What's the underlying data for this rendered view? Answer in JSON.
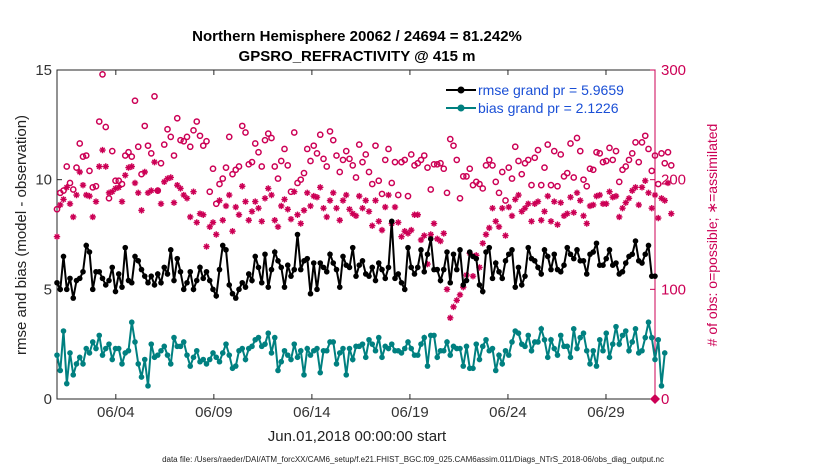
{
  "chart_data": {
    "type": "line",
    "title_line1": "Northern Hemisphere 20062 / 24694 = 81.242%",
    "title_line2": "GPSRO_REFRACTIVITY @ 415 m",
    "xlabel": "Jun.01,2018 00:00:00 start",
    "ylabel": "rmse and bias (model - observation)",
    "y2label": "# of obs: o=possible; ∗=assimilated",
    "footnote": "data file: /Users/raeder/DAI/ATM_forcXX/CAM6_setup/f.e21.FHIST_BGC.f09_025.CAM6assim.011/Diags_NTrS_2018-06/obs_diag_output.nc",
    "x_range": [
      1,
      31.5
    ],
    "ylim": [
      0,
      15
    ],
    "y2lim": [
      0,
      300
    ],
    "x_ticks": [
      4,
      9,
      14,
      19,
      24,
      29
    ],
    "x_tick_labels": [
      "06/04",
      "06/09",
      "06/14",
      "06/19",
      "06/24",
      "06/29"
    ],
    "y_ticks": [
      0,
      5,
      10,
      15
    ],
    "y_tick_labels": [
      "0",
      "5",
      "10",
      "15"
    ],
    "y2_ticks": [
      0,
      100,
      200,
      300
    ],
    "y2_tick_labels": [
      "0",
      "100",
      "200",
      "300"
    ],
    "colors": {
      "rmse": "#000000",
      "bias": "#008080",
      "obs": "#cc0055",
      "legend_text": "#1a4fd6"
    },
    "series": [
      {
        "name": "rmse grand pr = 5.9659",
        "axis": "left",
        "values": [
          5.3,
          5.0,
          6.5,
          5.0,
          5.5,
          4.6,
          5.4,
          5.5,
          5.8,
          7.0,
          6.7,
          5.0,
          5.8,
          5.8,
          5.5,
          5.2,
          5.4,
          6.0,
          4.9,
          5.7,
          5.1,
          6.9,
          5.4,
          5.3,
          6.5,
          6.3,
          5.9,
          5.6,
          5.3,
          5.6,
          5.2,
          5.7,
          5.3,
          6.0,
          5.7,
          6.8,
          5.4,
          6.4,
          5.8,
          5.0,
          5.3,
          5.8,
          5.0,
          5.4,
          6.0,
          5.5,
          5.8,
          5.4,
          5.0,
          4.7,
          5.9,
          7.0,
          6.8,
          5.2,
          4.8,
          4.6,
          5.0,
          5.3,
          5.1,
          5.7,
          5.4,
          6.5,
          6.0,
          5.3,
          6.6,
          5.1,
          5.9,
          6.7,
          6.3,
          6.0,
          5.1,
          6.1,
          5.6,
          5.9,
          7.5,
          5.9,
          6.3,
          6.4,
          4.8,
          6.2,
          5.0,
          6.2,
          6.0,
          5.8,
          6.6,
          6.2,
          5.9,
          5.1,
          6.5,
          6.1,
          6.0,
          6.9,
          5.6,
          6.1,
          6.3,
          5.7,
          5.6,
          6.0,
          5.4,
          6.2,
          5.9,
          5.5,
          6.0,
          8.1,
          5.5,
          5.7,
          5.3,
          5.0,
          6.9,
          6.0,
          5.7,
          6.0,
          6.8,
          5.8,
          6.6,
          7.3,
          5.9,
          5.9,
          5.4,
          5.9,
          6.7,
          5.3,
          6.6,
          5.9,
          6.8,
          5.2,
          5.4,
          6.7,
          6.5,
          6.4,
          5.2,
          4.9,
          6.7,
          6.9,
          5.5,
          6.2,
          5.8,
          5.5,
          6.3,
          6.6,
          6.8,
          5.1,
          6.0,
          5.2,
          5.6,
          6.9,
          6.4,
          6.3,
          6.0,
          5.7,
          6.8,
          6.5,
          5.9,
          6.6,
          5.9,
          5.8,
          6.1,
          6.9,
          6.6,
          6.4,
          6.8,
          6.3,
          6.3,
          5.7,
          6.6,
          6.7,
          7.1,
          6.1,
          6.1,
          6.4,
          6.8,
          6.1,
          6.2,
          5.7,
          5.8,
          6.2,
          6.5,
          6.6,
          7.2,
          6.3,
          6.2,
          6.6,
          7.0,
          5.6,
          5.6
        ]
      },
      {
        "name": "bias grand pr = 2.1226",
        "axis": "left",
        "values": [
          2.0,
          1.3,
          3.1,
          0.7,
          2.1,
          1.1,
          1.6,
          1.9,
          1.6,
          2.3,
          2.1,
          2.6,
          2.3,
          2.9,
          2.0,
          2.3,
          2.5,
          1.8,
          2.3,
          2.3,
          1.6,
          2.1,
          2.2,
          3.5,
          2.6,
          1.6,
          1.0,
          1.8,
          0.6,
          2.5,
          1.9,
          2.0,
          2.2,
          2.4,
          2.0,
          1.6,
          2.8,
          2.4,
          2.4,
          2.6,
          2.0,
          1.5,
          1.9,
          2.2,
          1.7,
          1.8,
          1.6,
          1.8,
          2.1,
          1.9,
          1.7,
          2.1,
          2.5,
          2.0,
          1.4,
          1.5,
          2.2,
          2.3,
          1.8,
          2.3,
          2.4,
          2.7,
          2.8,
          2.4,
          2.5,
          3.0,
          2.1,
          2.8,
          1.3,
          1.7,
          2.2,
          2.0,
          1.8,
          2.5,
          1.9,
          2.2,
          1.1,
          2.3,
          2.0,
          2.2,
          2.3,
          1.2,
          2.2,
          2.2,
          2.6,
          2.6,
          1.6,
          2.1,
          2.3,
          1.1,
          2.3,
          1.8,
          2.4,
          2.4,
          2.5,
          1.9,
          2.7,
          2.5,
          2.2,
          2.8,
          1.9,
          2.4,
          2.3,
          2.5,
          2.2,
          2.2,
          2.1,
          2.3,
          2.6,
          2.3,
          2.0,
          2.0,
          2.5,
          2.8,
          1.5,
          2.9,
          2.9,
          1.9,
          2.2,
          2.2,
          2.6,
          2.0,
          2.4,
          2.3,
          2.3,
          1.5,
          2.4,
          1.4,
          1.4,
          2.5,
          1.8,
          2.4,
          2.7,
          2.2,
          2.3,
          1.3,
          2.0,
          1.6,
          2.2,
          2.0,
          2.6,
          3.1,
          3.0,
          2.5,
          2.4,
          2.9,
          2.2,
          2.6,
          2.6,
          3.2,
          2.7,
          1.9,
          2.7,
          2.3,
          2.0,
          2.9,
          2.4,
          2.4,
          1.9,
          3.2,
          2.3,
          2.8,
          3.0,
          2.2,
          1.6,
          2.2,
          1.5,
          2.7,
          2.2,
          3.0,
          1.9,
          2.5,
          3.3,
          2.5,
          2.9,
          3.1,
          2.2,
          2.6,
          3.2,
          2.1,
          2.2,
          2.8,
          3.5,
          2.8,
          1.8,
          2.7,
          0.6,
          2.1
        ]
      },
      {
        "name": "obs possible",
        "axis": "right",
        "marker": "o",
        "values": [
          173,
          188,
          190,
          212,
          197,
          191,
          211,
          233,
          221,
          222,
          208,
          193,
          194,
          253,
          296,
          248,
          183,
          226,
          199,
          199,
          196,
          222,
          225,
          221,
          272,
          230,
          205,
          249,
          231,
          224,
          276,
          190,
          215,
          232,
          246,
          239,
          222,
          256,
          236,
          235,
          239,
          230,
          245,
          253,
          240,
          231,
          235,
          189,
          210,
          178,
          196,
          201,
          211,
          239,
          205,
          209,
          212,
          249,
          243,
          214,
          216,
          233,
          225,
          212,
          236,
          242,
          238,
          212,
          201,
          217,
          228,
          213,
          189,
          243,
          197,
          200,
          206,
          228,
          217,
          231,
          224,
          241,
          219,
          212,
          244,
          236,
          222,
          207,
          218,
          226,
          219,
          213,
          202,
          232,
          216,
          223,
          207,
          196,
          231,
          199,
          187,
          218,
          228,
          197,
          216,
          186,
          216,
          218,
          185,
          223,
          213,
          215,
          218,
          222,
          211,
          191,
          214,
          214,
          215,
          210,
          188,
          237,
          231,
          218,
          183,
          203,
          203,
          210,
          195,
          198,
          196,
          192,
          213,
          218,
          213,
          198,
          188,
          207,
          181,
          211,
          201,
          230,
          217,
          205,
          215,
          218,
          195,
          220,
          227,
          195,
          211,
          232,
          195,
          226,
          194,
          223,
          203,
          206,
          233,
          202,
          238,
          226,
          200,
          194,
          210,
          209,
          225,
          224,
          216,
          217,
          229,
          218,
          226,
          198,
          209,
          212,
          218,
          224,
          234,
          216,
          234,
          240,
          228,
          208,
          222,
          196,
          224,
          215,
          225,
          213
        ]
      },
      {
        "name": "obs assimilated",
        "axis": "right",
        "marker": "*",
        "values": [
          148,
          177,
          182,
          193,
          178,
          166,
          186,
          207,
          195,
          186,
          185,
          166,
          180,
          212,
          227,
          212,
          188,
          189,
          192,
          193,
          180,
          204,
          211,
          212,
          197,
          188,
          172,
          207,
          188,
          190,
          216,
          190,
          178,
          198,
          201,
          202,
          179,
          195,
          192,
          186,
          183,
          166,
          189,
          161,
          169,
          168,
          139,
          157,
          161,
          150,
          181,
          163,
          176,
          186,
          153,
          175,
          168,
          194,
          180,
          163,
          171,
          180,
          174,
          162,
          183,
          192,
          186,
          163,
          157,
          176,
          182,
          173,
          164,
          189,
          168,
          160,
          172,
          188,
          176,
          185,
          184,
          193,
          174,
          166,
          181,
          188,
          174,
          163,
          181,
          186,
          173,
          169,
          167,
          185,
          174,
          181,
          171,
          158,
          181,
          162,
          154,
          175,
          186,
          160,
          175,
          161,
          148,
          153,
          151,
          154,
          168,
          168,
          145,
          149,
          123,
          150,
          160,
          146,
          144,
          151,
          100,
          74,
          84,
          90,
          95,
          102,
          113,
          133,
          112,
          131,
          120,
          142,
          150,
          156,
          174,
          162,
          157,
          174,
          149,
          175,
          167,
          182,
          186,
          171,
          174,
          178,
          162,
          178,
          180,
          163,
          171,
          185,
          162,
          180,
          159,
          179,
          167,
          169,
          184,
          170,
          188,
          181,
          167,
          160,
          176,
          177,
          185,
          186,
          178,
          178,
          189,
          184,
          185,
          166,
          174,
          179,
          183,
          190,
          193,
          177,
          193,
          199,
          188,
          174,
          186,
          165,
          183,
          181,
          197,
          169
        ]
      }
    ]
  }
}
